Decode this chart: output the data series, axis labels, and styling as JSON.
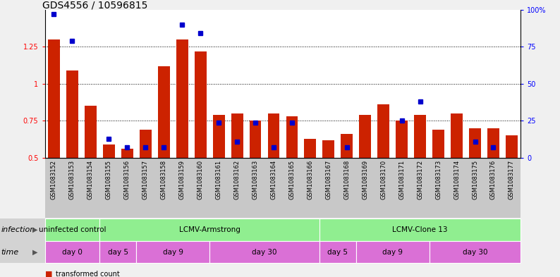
{
  "title": "GDS4556 / 10596815",
  "samples": [
    "GSM1083152",
    "GSM1083153",
    "GSM1083154",
    "GSM1083155",
    "GSM1083156",
    "GSM1083157",
    "GSM1083158",
    "GSM1083159",
    "GSM1083160",
    "GSM1083161",
    "GSM1083162",
    "GSM1083163",
    "GSM1083164",
    "GSM1083165",
    "GSM1083166",
    "GSM1083167",
    "GSM1083168",
    "GSM1083169",
    "GSM1083170",
    "GSM1083171",
    "GSM1083172",
    "GSM1083173",
    "GSM1083174",
    "GSM1083175",
    "GSM1083176",
    "GSM1083177"
  ],
  "red_values": [
    1.3,
    1.09,
    0.85,
    0.59,
    0.56,
    0.69,
    1.12,
    1.3,
    1.22,
    0.79,
    0.8,
    0.75,
    0.8,
    0.78,
    0.63,
    0.62,
    0.66,
    0.79,
    0.86,
    0.75,
    0.79,
    0.69,
    0.8,
    0.7,
    0.7,
    0.65
  ],
  "blue_values": [
    1.47,
    1.29,
    null,
    0.63,
    0.57,
    0.57,
    0.57,
    1.4,
    1.34,
    0.74,
    0.61,
    0.74,
    0.57,
    0.74,
    null,
    null,
    0.57,
    null,
    null,
    0.75,
    0.88,
    null,
    null,
    0.61,
    0.57,
    null
  ],
  "ylim_left": [
    0.5,
    1.5
  ],
  "yticks_left": [
    0.5,
    0.75,
    1.0,
    1.25
  ],
  "yticklabels_left": [
    "0.5",
    "0.75",
    "1",
    "1.25"
  ],
  "yticks_right_pct": [
    0,
    25,
    50,
    75,
    100
  ],
  "yticklabels_right": [
    "0",
    "25",
    "50",
    "75",
    "100%"
  ],
  "bar_color_red": "#CC2200",
  "bar_color_blue": "#0000CC",
  "fig_bg": "#F0F0F0",
  "plot_bg": "#FFFFFF",
  "xtick_area_bg": "#C8C8C8",
  "infection_color": "#90EE90",
  "time_color": "#DA70D6",
  "label_row_bg": "#D3D3D3",
  "infection_groups": [
    {
      "label": "uninfected control",
      "start": 0,
      "end": 3
    },
    {
      "label": "LCMV-Armstrong",
      "start": 3,
      "end": 15
    },
    {
      "label": "LCMV-Clone 13",
      "start": 15,
      "end": 26
    }
  ],
  "time_groups": [
    {
      "label": "day 0",
      "start": 0,
      "end": 3
    },
    {
      "label": "day 5",
      "start": 3,
      "end": 5
    },
    {
      "label": "day 9",
      "start": 5,
      "end": 9
    },
    {
      "label": "day 30",
      "start": 9,
      "end": 15
    },
    {
      "label": "day 5",
      "start": 15,
      "end": 17
    },
    {
      "label": "day 9",
      "start": 17,
      "end": 21
    },
    {
      "label": "day 30",
      "start": 21,
      "end": 26
    }
  ]
}
